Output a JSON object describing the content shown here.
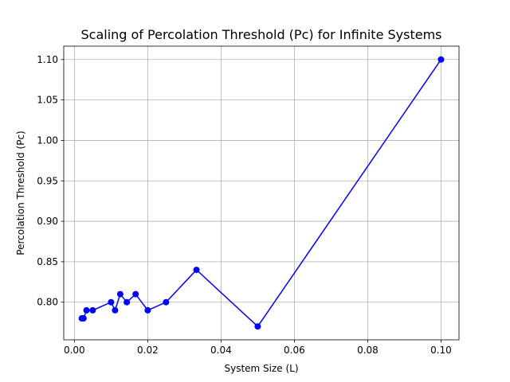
{
  "chart_data": {
    "type": "line",
    "title": "Scaling of Percolation Threshold (Pc) for Infinite Systems",
    "xlabel": "System Size (L)",
    "ylabel": "Percolation Threshold (Pc)",
    "xlim": [
      -0.0029,
      0.1049
    ],
    "ylim": [
      0.7535,
      1.1165
    ],
    "xticks": [
      0.0,
      0.02,
      0.04,
      0.06,
      0.08,
      0.1
    ],
    "xtick_labels": [
      "0.00",
      "0.02",
      "0.04",
      "0.06",
      "0.08",
      "0.10"
    ],
    "yticks": [
      0.8,
      0.85,
      0.9,
      0.95,
      1.0,
      1.05,
      1.1
    ],
    "ytick_labels": [
      "0.80",
      "0.85",
      "0.90",
      "0.95",
      "1.00",
      "1.05",
      "1.10"
    ],
    "grid": true,
    "series": [
      {
        "color": "#0000ff",
        "marker": "circle",
        "points": [
          {
            "x": 0.002,
            "y": 0.78
          },
          {
            "x": 0.0025,
            "y": 0.78
          },
          {
            "x": 0.0033,
            "y": 0.79
          },
          {
            "x": 0.005,
            "y": 0.79
          },
          {
            "x": 0.01,
            "y": 0.8
          },
          {
            "x": 0.0111,
            "y": 0.79
          },
          {
            "x": 0.0125,
            "y": 0.81
          },
          {
            "x": 0.0143,
            "y": 0.8
          },
          {
            "x": 0.0167,
            "y": 0.81
          },
          {
            "x": 0.02,
            "y": 0.79
          },
          {
            "x": 0.025,
            "y": 0.8
          },
          {
            "x": 0.0333,
            "y": 0.84
          },
          {
            "x": 0.05,
            "y": 0.77
          },
          {
            "x": 0.1,
            "y": 1.1
          }
        ]
      }
    ]
  }
}
